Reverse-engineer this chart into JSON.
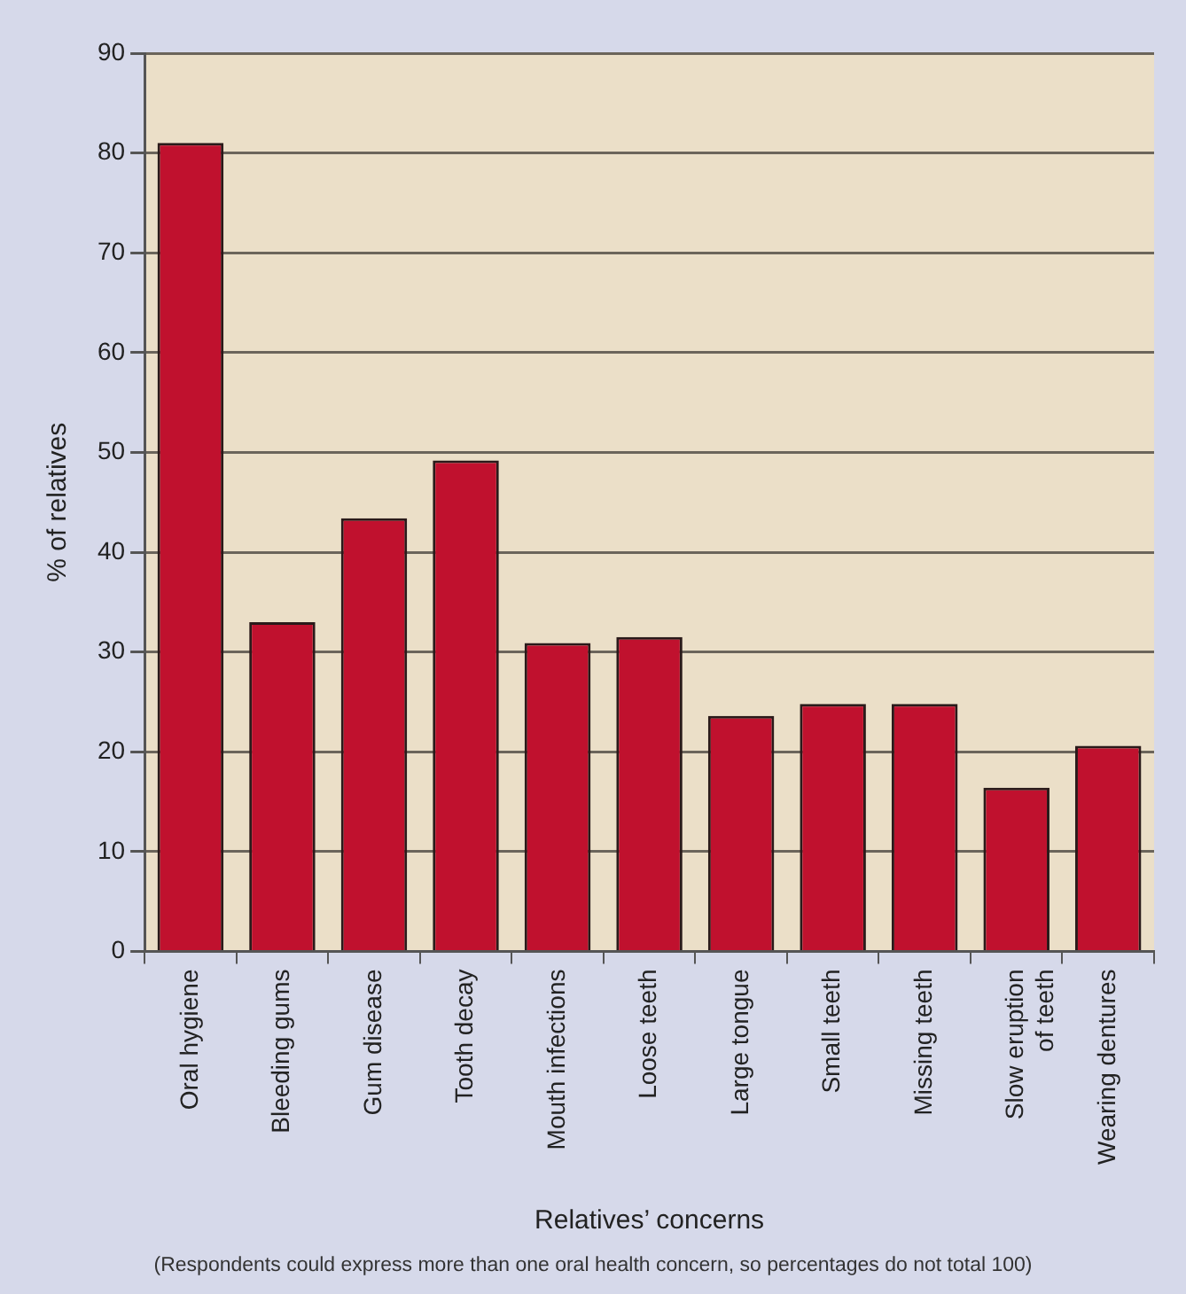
{
  "chart_data": {
    "type": "bar",
    "xlabel": "Relatives’ concerns",
    "ylabel": "% of relatives",
    "categories": [
      "Oral hygiene",
      "Bleeding gums",
      "Gum disease",
      "Tooth decay",
      "Mouth infections",
      "Loose teeth",
      "Large tongue",
      "Small teeth",
      "Missing teeth",
      "Slow eruption\nof teeth",
      "Wearing dentures"
    ],
    "values": [
      81,
      33,
      43.4,
      49.2,
      30.9,
      31.5,
      23.6,
      24.8,
      24.8,
      16.4,
      20.6
    ],
    "color": "#c0112e",
    "ylim": [
      0,
      90
    ],
    "yticks": [
      0,
      10,
      20,
      30,
      40,
      50,
      60,
      70,
      80,
      90
    ],
    "grid": "y",
    "legend": false,
    "annotations": [
      "(Respondents could express more than one oral health concern, so percentages do not total 100)"
    ]
  }
}
